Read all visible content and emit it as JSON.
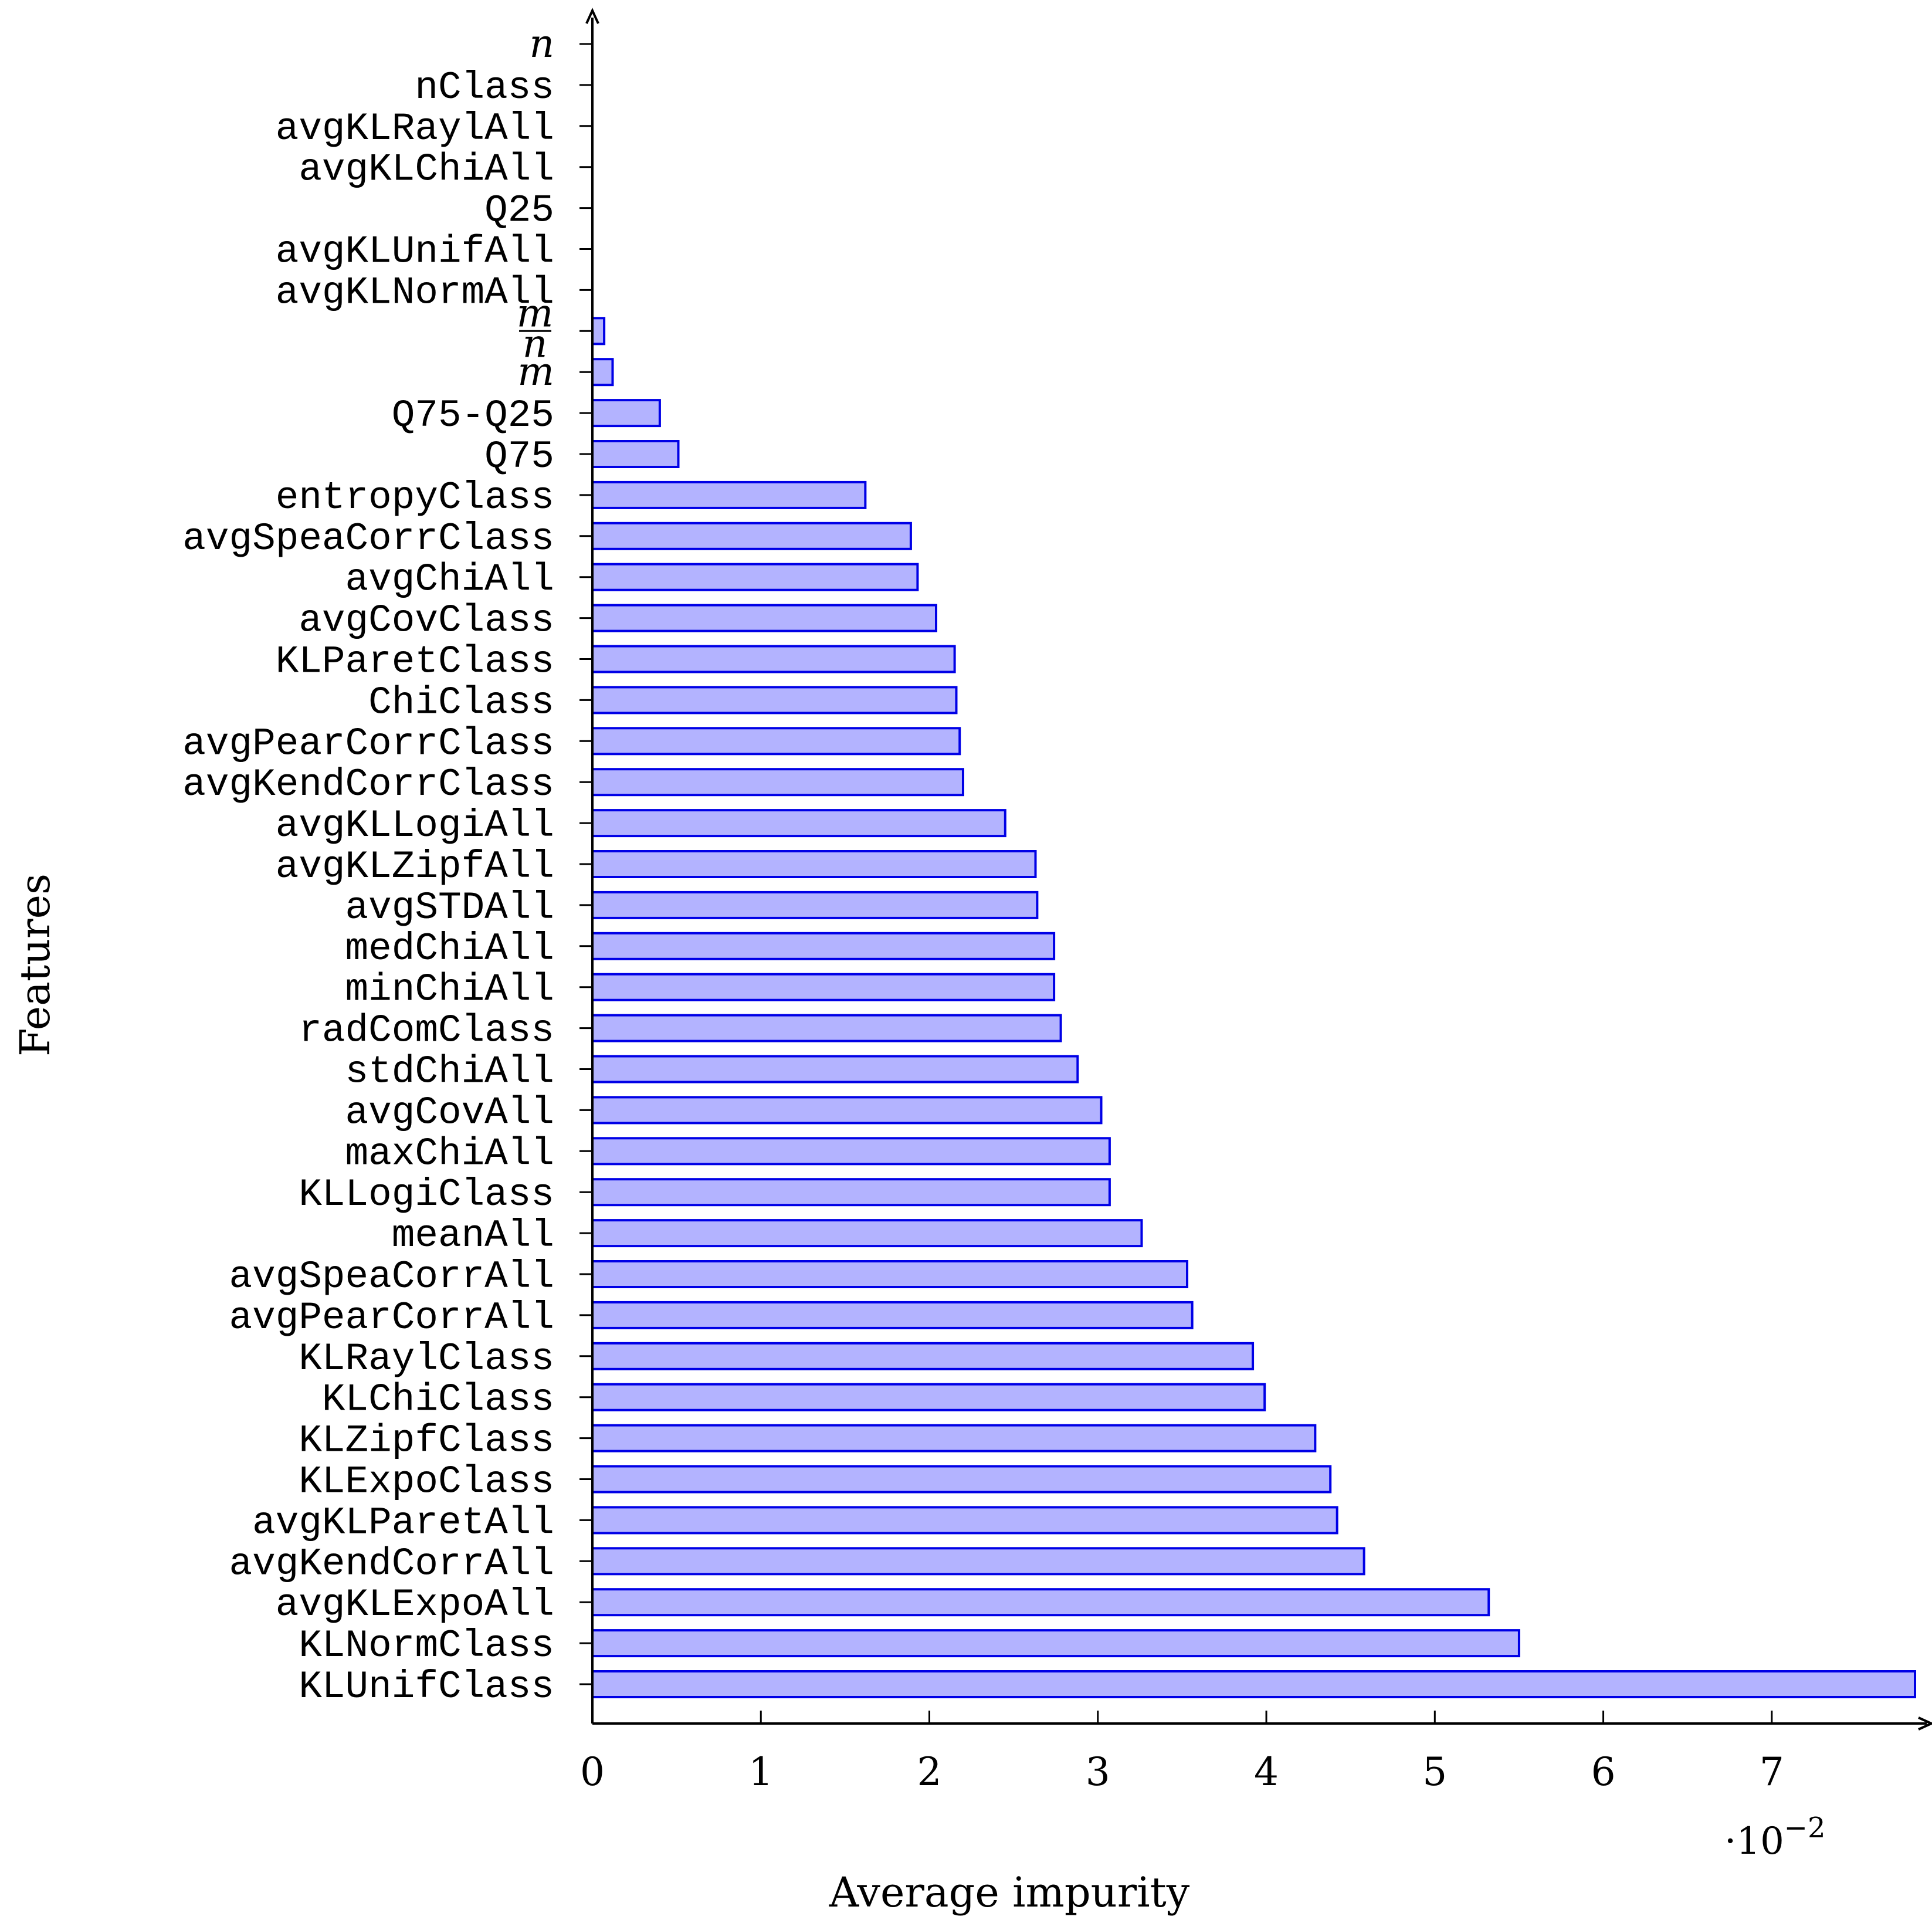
{
  "chart_data": {
    "type": "bar",
    "orientation": "horizontal",
    "xlabel": "Average impurity",
    "ylabel": "Features",
    "x_multiplier": "·10",
    "x_multiplier_exponent": "−2",
    "xlim": [
      0,
      7.85
    ],
    "x_ticks": [
      "0",
      "1",
      "2",
      "3",
      "4",
      "5",
      "6",
      "7"
    ],
    "grid": false,
    "colors": {
      "bar_fill": "#b3b3ff",
      "bar_stroke": "#0000e6",
      "axis": "#000000"
    },
    "categories": [
      "n",
      "nClass",
      "avgKLRaylAll",
      "avgKLChiAll",
      "Q25",
      "avgKLUnifAll",
      "avgKLNormAll",
      "m/n",
      "m",
      "Q75-Q25",
      "Q75",
      "entropyClass",
      "avgSpeaCorrClass",
      "avgChiAll",
      "avgCovClass",
      "KLParetClass",
      "ChiClass",
      "avgPearCorrClass",
      "avgKendCorrClass",
      "avgKLLogiAll",
      "avgKLZipfAll",
      "avgSTDAll",
      "medChiAll",
      "minChiAll",
      "radComClass",
      "stdChiAll",
      "avgCovAll",
      "maxChiAll",
      "KLLogiClass",
      "meanAll",
      "avgSpeaCorrAll",
      "avgPearCorrAll",
      "KLRaylClass",
      "KLChiClass",
      "KLZipfClass",
      "KLExpoClass",
      "avgKLParetAll",
      "avgKendCorrAll",
      "avgKLExpoAll",
      "KLNormClass",
      "KLUnifClass"
    ],
    "values": [
      0,
      0,
      0,
      0,
      0,
      0,
      0,
      0.07,
      0.12,
      0.4,
      0.51,
      1.62,
      1.89,
      1.93,
      2.04,
      2.15,
      2.16,
      2.18,
      2.2,
      2.45,
      2.63,
      2.64,
      2.74,
      2.74,
      2.78,
      2.88,
      3.02,
      3.07,
      3.07,
      3.26,
      3.53,
      3.56,
      3.92,
      3.99,
      4.29,
      4.38,
      4.42,
      4.58,
      5.32,
      5.5,
      7.85
    ]
  }
}
